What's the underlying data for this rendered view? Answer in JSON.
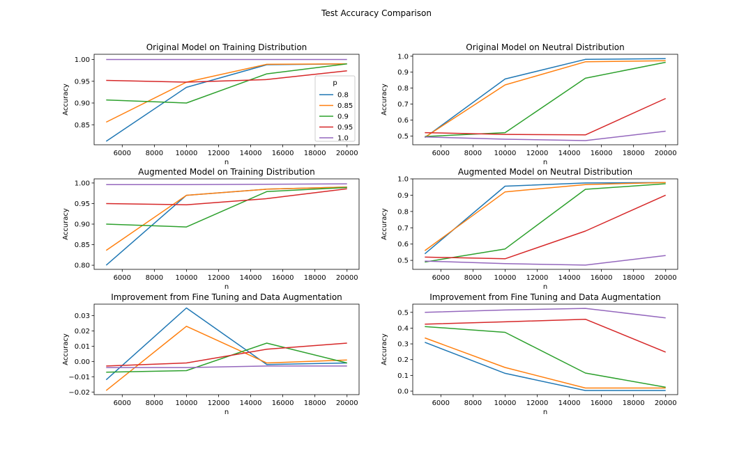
{
  "figure": {
    "title": "Test Accuracy Comparison"
  },
  "colors": {
    "0.8": "#1f77b4",
    "0.85": "#ff7f0e",
    "0.9": "#2ca02c",
    "0.95": "#d62728",
    "1.0": "#9467bd"
  },
  "legend": {
    "title": "p",
    "entries": [
      "0.8",
      "0.85",
      "0.9",
      "0.95",
      "1.0"
    ],
    "placement": "lower-right"
  },
  "chart_data": [
    {
      "type": "line",
      "title": "Original Model on Training Distribution",
      "xlabel": "n",
      "ylabel": "Accuracy",
      "xlim": [
        4250,
        20750
      ],
      "ylim": [
        0.804,
        1.012
      ],
      "xticks": [
        6000,
        8000,
        10000,
        12000,
        14000,
        16000,
        18000,
        20000
      ],
      "yticks": [
        0.85,
        0.9,
        0.95,
        1.0
      ],
      "ytick_labels": [
        "0.85",
        "0.90",
        "0.95",
        "1.00"
      ],
      "x": [
        5000,
        10000,
        15000,
        20000
      ],
      "legend": true,
      "series": [
        {
          "name": "0.8",
          "values": [
            0.812,
            0.936,
            0.988,
            0.99
          ]
        },
        {
          "name": "0.85",
          "values": [
            0.856,
            0.948,
            0.989,
            0.99
          ]
        },
        {
          "name": "0.9",
          "values": [
            0.907,
            0.9,
            0.967,
            0.99
          ]
        },
        {
          "name": "0.95",
          "values": [
            0.952,
            0.948,
            0.954,
            0.974
          ]
        },
        {
          "name": "1.0",
          "values": [
            1.0,
            1.0,
            1.0,
            1.0
          ]
        }
      ]
    },
    {
      "type": "line",
      "title": "Original Model on Neutral Distribution",
      "xlabel": "n",
      "ylabel": "Accuracy",
      "xlim": [
        4250,
        20750
      ],
      "ylim": [
        0.445,
        1.012
      ],
      "xticks": [
        6000,
        8000,
        10000,
        12000,
        14000,
        16000,
        18000,
        20000
      ],
      "yticks": [
        0.5,
        0.6,
        0.7,
        0.8,
        0.9,
        1.0
      ],
      "ytick_labels": [
        "0.5",
        "0.6",
        "0.7",
        "0.8",
        "0.9",
        "1.0"
      ],
      "x": [
        5000,
        10000,
        15000,
        20000
      ],
      "legend": false,
      "series": [
        {
          "name": "0.8",
          "values": [
            0.49,
            0.857,
            0.98,
            0.985
          ]
        },
        {
          "name": "0.85",
          "values": [
            0.492,
            0.82,
            0.965,
            0.972
          ]
        },
        {
          "name": "0.9",
          "values": [
            0.497,
            0.521,
            0.862,
            0.962
          ]
        },
        {
          "name": "0.95",
          "values": [
            0.521,
            0.51,
            0.507,
            0.735
          ]
        },
        {
          "name": "1.0",
          "values": [
            0.494,
            0.48,
            0.471,
            0.53
          ]
        }
      ]
    },
    {
      "type": "line",
      "title": "Augmented Model on Training Distribution",
      "xlabel": "n",
      "ylabel": "Accuracy",
      "xlim": [
        4250,
        20750
      ],
      "ylim": [
        0.79,
        1.01
      ],
      "xticks": [
        6000,
        8000,
        10000,
        12000,
        14000,
        16000,
        18000,
        20000
      ],
      "yticks": [
        0.8,
        0.85,
        0.9,
        0.95,
        1.0
      ],
      "ytick_labels": [
        "0.80",
        "0.85",
        "0.90",
        "0.95",
        "1.00"
      ],
      "x": [
        5000,
        10000,
        15000,
        20000
      ],
      "legend": false,
      "series": [
        {
          "name": "0.8",
          "values": [
            0.8,
            0.97,
            0.985,
            0.99
          ]
        },
        {
          "name": "0.85",
          "values": [
            0.836,
            0.97,
            0.985,
            0.99
          ]
        },
        {
          "name": "0.9",
          "values": [
            0.9,
            0.893,
            0.979,
            0.989
          ]
        },
        {
          "name": "0.95",
          "values": [
            0.95,
            0.947,
            0.962,
            0.986
          ]
        },
        {
          "name": "1.0",
          "values": [
            0.996,
            0.996,
            0.997,
            0.998
          ]
        }
      ]
    },
    {
      "type": "line",
      "title": "Augmented Model on Neutral Distribution",
      "xlabel": "n",
      "ylabel": "Accuracy",
      "xlim": [
        4250,
        20750
      ],
      "ylim": [
        0.445,
        1.0
      ],
      "xticks": [
        6000,
        8000,
        10000,
        12000,
        14000,
        16000,
        18000,
        20000
      ],
      "yticks": [
        0.5,
        0.6,
        0.7,
        0.8,
        0.9,
        1.0
      ],
      "ytick_labels": [
        "0.5",
        "0.6",
        "0.7",
        "0.8",
        "0.9",
        "1.0"
      ],
      "x": [
        5000,
        10000,
        15000,
        20000
      ],
      "legend": false,
      "series": [
        {
          "name": "0.8",
          "values": [
            0.54,
            0.955,
            0.975,
            0.978
          ]
        },
        {
          "name": "0.85",
          "values": [
            0.56,
            0.92,
            0.965,
            0.978
          ]
        },
        {
          "name": "0.9",
          "values": [
            0.49,
            0.57,
            0.936,
            0.97
          ]
        },
        {
          "name": "0.95",
          "values": [
            0.52,
            0.51,
            0.68,
            0.9
          ]
        },
        {
          "name": "1.0",
          "values": [
            0.496,
            0.48,
            0.471,
            0.53
          ]
        }
      ]
    },
    {
      "type": "line",
      "title": "Improvement from Fine Tuning and Data Augmentation",
      "xlabel": "n",
      "ylabel": "Accuracy",
      "xlim": [
        4250,
        20750
      ],
      "ylim": [
        -0.0217,
        0.0375
      ],
      "xticks": [
        6000,
        8000,
        10000,
        12000,
        14000,
        16000,
        18000,
        20000
      ],
      "yticks": [
        -0.02,
        -0.01,
        0.0,
        0.01,
        0.02,
        0.03
      ],
      "ytick_labels": [
        "−0.02",
        "−0.01",
        "0.00",
        "0.01",
        "0.02",
        "0.03"
      ],
      "x": [
        5000,
        10000,
        15000,
        20000
      ],
      "legend": false,
      "series": [
        {
          "name": "0.8",
          "values": [
            -0.012,
            0.035,
            -0.002,
            -0.001
          ]
        },
        {
          "name": "0.85",
          "values": [
            -0.019,
            0.023,
            -0.001,
            0.001
          ]
        },
        {
          "name": "0.9",
          "values": [
            -0.007,
            -0.006,
            0.012,
            -0.001
          ]
        },
        {
          "name": "0.95",
          "values": [
            -0.003,
            -0.001,
            0.008,
            0.012
          ]
        },
        {
          "name": "1.0",
          "values": [
            -0.004,
            -0.004,
            -0.003,
            -0.003
          ]
        }
      ]
    },
    {
      "type": "line",
      "title": "Improvement from Fine Tuning and Data Augmentation",
      "xlabel": "n",
      "ylabel": "Accuracy",
      "xlim": [
        4250,
        20750
      ],
      "ylim": [
        -0.022,
        0.552
      ],
      "xticks": [
        6000,
        8000,
        10000,
        12000,
        14000,
        16000,
        18000,
        20000
      ],
      "yticks": [
        0.0,
        0.1,
        0.2,
        0.3,
        0.4,
        0.5
      ],
      "ytick_labels": [
        "0.0",
        "0.1",
        "0.2",
        "0.3",
        "0.4",
        "0.5"
      ],
      "x": [
        5000,
        10000,
        15000,
        20000
      ],
      "legend": false,
      "series": [
        {
          "name": "0.8",
          "values": [
            0.31,
            0.113,
            0.004,
            0.004
          ]
        },
        {
          "name": "0.85",
          "values": [
            0.338,
            0.15,
            0.02,
            0.02
          ]
        },
        {
          "name": "0.9",
          "values": [
            0.41,
            0.373,
            0.115,
            0.025
          ]
        },
        {
          "name": "0.95",
          "values": [
            0.425,
            0.44,
            0.456,
            0.248
          ]
        },
        {
          "name": "1.0",
          "values": [
            0.5,
            0.515,
            0.525,
            0.465
          ]
        }
      ]
    }
  ]
}
